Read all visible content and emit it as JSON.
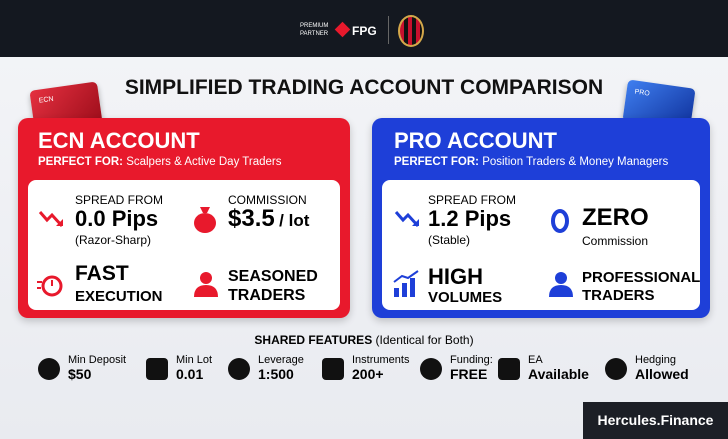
{
  "header": {
    "partner": [
      "PREMIUM",
      "PARTNER"
    ],
    "brand": "FPG"
  },
  "title": "SIMPLIFIED TRADING ACCOUNT COMPARISON",
  "ecn": {
    "card_label": "ECN",
    "title": "ECN ACCOUNT",
    "perfect_for_label": "PERFECT FOR:",
    "perfect_for": "Scalpers & Active Day Traders",
    "spread_label": "SPREAD FROM",
    "spread_value": "0.0 Pips",
    "spread_note": "(Razor-Sharp)",
    "commission_label": "COMMISSION",
    "commission_value": "$3.5",
    "commission_unit": "/ lot",
    "execution": [
      "FAST",
      "EXECUTION"
    ],
    "traders": [
      "SEASONED",
      "TRADERS"
    ]
  },
  "pro": {
    "card_label": "PRO",
    "title": "PRO ACCOUNT",
    "perfect_for_label": "PERFECT FOR:",
    "perfect_for": "Position Traders & Money Managers",
    "spread_label": "SPREAD FROM",
    "spread_value": "1.2 Pips",
    "spread_note": "(Stable)",
    "commission_value": "ZERO",
    "commission_label": "Commission",
    "volumes": [
      "HIGH",
      "VOLUMES"
    ],
    "traders": [
      "PROFESSIONAL",
      "TRADERS"
    ]
  },
  "shared": {
    "title": "SHARED FEATURES",
    "note": "(Identical for Both)",
    "items": [
      [
        "Min Deposit",
        "$50"
      ],
      [
        "Min Lot",
        "0.01"
      ],
      [
        "Leverage",
        "1:500"
      ],
      [
        "Instruments",
        "200+"
      ],
      [
        "Funding:",
        "FREE"
      ],
      [
        "EA",
        "Available"
      ],
      [
        "Hedging",
        "Allowed"
      ]
    ]
  },
  "footer": "Hercules.Finance"
}
